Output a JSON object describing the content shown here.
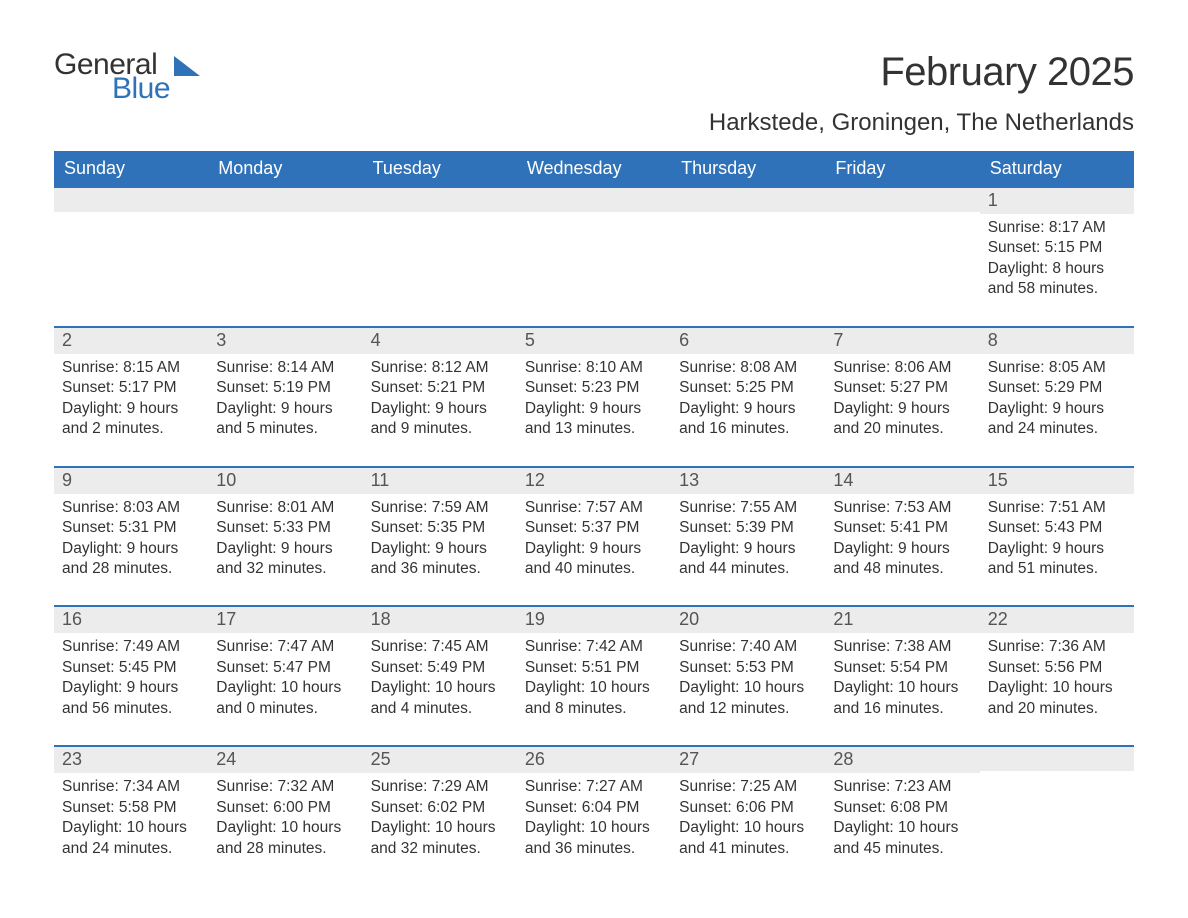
{
  "logo": {
    "word1": "General",
    "word2": "Blue",
    "accent_color": "#2f72b9"
  },
  "header": {
    "month_title": "February 2025",
    "location": "Harkstede, Groningen, The Netherlands"
  },
  "colors": {
    "header_bg": "#2f72b9",
    "header_text": "#ffffff",
    "daynum_bg": "#ececec",
    "body_text": "#333333",
    "page_bg": "#ffffff"
  },
  "weekdays": [
    "Sunday",
    "Monday",
    "Tuesday",
    "Wednesday",
    "Thursday",
    "Friday",
    "Saturday"
  ],
  "weeks": [
    [
      {
        "empty": true
      },
      {
        "empty": true
      },
      {
        "empty": true
      },
      {
        "empty": true
      },
      {
        "empty": true
      },
      {
        "empty": true
      },
      {
        "num": "1",
        "sunrise": "Sunrise: 8:17 AM",
        "sunset": "Sunset: 5:15 PM",
        "day1": "Daylight: 8 hours",
        "day2": "and 58 minutes."
      }
    ],
    [
      {
        "num": "2",
        "sunrise": "Sunrise: 8:15 AM",
        "sunset": "Sunset: 5:17 PM",
        "day1": "Daylight: 9 hours",
        "day2": "and 2 minutes."
      },
      {
        "num": "3",
        "sunrise": "Sunrise: 8:14 AM",
        "sunset": "Sunset: 5:19 PM",
        "day1": "Daylight: 9 hours",
        "day2": "and 5 minutes."
      },
      {
        "num": "4",
        "sunrise": "Sunrise: 8:12 AM",
        "sunset": "Sunset: 5:21 PM",
        "day1": "Daylight: 9 hours",
        "day2": "and 9 minutes."
      },
      {
        "num": "5",
        "sunrise": "Sunrise: 8:10 AM",
        "sunset": "Sunset: 5:23 PM",
        "day1": "Daylight: 9 hours",
        "day2": "and 13 minutes."
      },
      {
        "num": "6",
        "sunrise": "Sunrise: 8:08 AM",
        "sunset": "Sunset: 5:25 PM",
        "day1": "Daylight: 9 hours",
        "day2": "and 16 minutes."
      },
      {
        "num": "7",
        "sunrise": "Sunrise: 8:06 AM",
        "sunset": "Sunset: 5:27 PM",
        "day1": "Daylight: 9 hours",
        "day2": "and 20 minutes."
      },
      {
        "num": "8",
        "sunrise": "Sunrise: 8:05 AM",
        "sunset": "Sunset: 5:29 PM",
        "day1": "Daylight: 9 hours",
        "day2": "and 24 minutes."
      }
    ],
    [
      {
        "num": "9",
        "sunrise": "Sunrise: 8:03 AM",
        "sunset": "Sunset: 5:31 PM",
        "day1": "Daylight: 9 hours",
        "day2": "and 28 minutes."
      },
      {
        "num": "10",
        "sunrise": "Sunrise: 8:01 AM",
        "sunset": "Sunset: 5:33 PM",
        "day1": "Daylight: 9 hours",
        "day2": "and 32 minutes."
      },
      {
        "num": "11",
        "sunrise": "Sunrise: 7:59 AM",
        "sunset": "Sunset: 5:35 PM",
        "day1": "Daylight: 9 hours",
        "day2": "and 36 minutes."
      },
      {
        "num": "12",
        "sunrise": "Sunrise: 7:57 AM",
        "sunset": "Sunset: 5:37 PM",
        "day1": "Daylight: 9 hours",
        "day2": "and 40 minutes."
      },
      {
        "num": "13",
        "sunrise": "Sunrise: 7:55 AM",
        "sunset": "Sunset: 5:39 PM",
        "day1": "Daylight: 9 hours",
        "day2": "and 44 minutes."
      },
      {
        "num": "14",
        "sunrise": "Sunrise: 7:53 AM",
        "sunset": "Sunset: 5:41 PM",
        "day1": "Daylight: 9 hours",
        "day2": "and 48 minutes."
      },
      {
        "num": "15",
        "sunrise": "Sunrise: 7:51 AM",
        "sunset": "Sunset: 5:43 PM",
        "day1": "Daylight: 9 hours",
        "day2": "and 51 minutes."
      }
    ],
    [
      {
        "num": "16",
        "sunrise": "Sunrise: 7:49 AM",
        "sunset": "Sunset: 5:45 PM",
        "day1": "Daylight: 9 hours",
        "day2": "and 56 minutes."
      },
      {
        "num": "17",
        "sunrise": "Sunrise: 7:47 AM",
        "sunset": "Sunset: 5:47 PM",
        "day1": "Daylight: 10 hours",
        "day2": "and 0 minutes."
      },
      {
        "num": "18",
        "sunrise": "Sunrise: 7:45 AM",
        "sunset": "Sunset: 5:49 PM",
        "day1": "Daylight: 10 hours",
        "day2": "and 4 minutes."
      },
      {
        "num": "19",
        "sunrise": "Sunrise: 7:42 AM",
        "sunset": "Sunset: 5:51 PM",
        "day1": "Daylight: 10 hours",
        "day2": "and 8 minutes."
      },
      {
        "num": "20",
        "sunrise": "Sunrise: 7:40 AM",
        "sunset": "Sunset: 5:53 PM",
        "day1": "Daylight: 10 hours",
        "day2": "and 12 minutes."
      },
      {
        "num": "21",
        "sunrise": "Sunrise: 7:38 AM",
        "sunset": "Sunset: 5:54 PM",
        "day1": "Daylight: 10 hours",
        "day2": "and 16 minutes."
      },
      {
        "num": "22",
        "sunrise": "Sunrise: 7:36 AM",
        "sunset": "Sunset: 5:56 PM",
        "day1": "Daylight: 10 hours",
        "day2": "and 20 minutes."
      }
    ],
    [
      {
        "num": "23",
        "sunrise": "Sunrise: 7:34 AM",
        "sunset": "Sunset: 5:58 PM",
        "day1": "Daylight: 10 hours",
        "day2": "and 24 minutes."
      },
      {
        "num": "24",
        "sunrise": "Sunrise: 7:32 AM",
        "sunset": "Sunset: 6:00 PM",
        "day1": "Daylight: 10 hours",
        "day2": "and 28 minutes."
      },
      {
        "num": "25",
        "sunrise": "Sunrise: 7:29 AM",
        "sunset": "Sunset: 6:02 PM",
        "day1": "Daylight: 10 hours",
        "day2": "and 32 minutes."
      },
      {
        "num": "26",
        "sunrise": "Sunrise: 7:27 AM",
        "sunset": "Sunset: 6:04 PM",
        "day1": "Daylight: 10 hours",
        "day2": "and 36 minutes."
      },
      {
        "num": "27",
        "sunrise": "Sunrise: 7:25 AM",
        "sunset": "Sunset: 6:06 PM",
        "day1": "Daylight: 10 hours",
        "day2": "and 41 minutes."
      },
      {
        "num": "28",
        "sunrise": "Sunrise: 7:23 AM",
        "sunset": "Sunset: 6:08 PM",
        "day1": "Daylight: 10 hours",
        "day2": "and 45 minutes."
      },
      {
        "empty": true
      }
    ]
  ]
}
